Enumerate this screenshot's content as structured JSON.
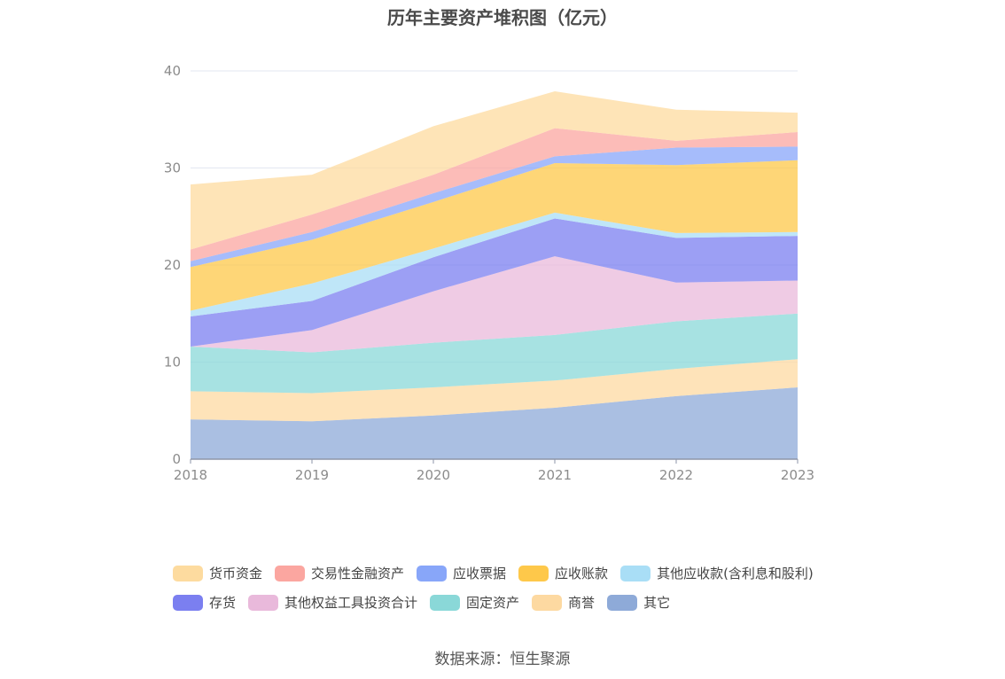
{
  "chart_data": {
    "type": "area",
    "stacked": true,
    "title": "历年主要资产堆积图（亿元）",
    "categories": [
      "2018",
      "2019",
      "2020",
      "2021",
      "2022",
      "2023"
    ],
    "ylim": [
      0,
      40
    ],
    "yticks": [
      0,
      10,
      20,
      30,
      40
    ],
    "grid": true,
    "legend_position": "bottom",
    "series": [
      {
        "name": "其它",
        "color": "#8eaad8",
        "values": [
          4.1,
          3.9,
          4.5,
          5.3,
          6.5,
          7.4
        ]
      },
      {
        "name": "商誉",
        "color": "#fdd9a1",
        "values": [
          2.9,
          2.9,
          2.9,
          2.8,
          2.8,
          2.9
        ]
      },
      {
        "name": "固定资产",
        "color": "#8ad8d8",
        "values": [
          4.6,
          4.2,
          4.6,
          4.7,
          4.9,
          4.7
        ]
      },
      {
        "name": "其他权益工具投资合计",
        "color": "#e9b9db",
        "values": [
          0.0,
          2.3,
          5.3,
          8.1,
          4.0,
          3.4
        ]
      },
      {
        "name": "存货",
        "color": "#7b7ff0",
        "values": [
          3.1,
          3.0,
          3.5,
          3.9,
          4.6,
          4.6
        ]
      },
      {
        "name": "其他应收款(含利息和股利)",
        "color": "#a9def6",
        "values": [
          0.6,
          1.8,
          0.9,
          0.6,
          0.5,
          0.4
        ]
      },
      {
        "name": "应收账款",
        "color": "#fec84a",
        "values": [
          4.5,
          4.5,
          4.8,
          5.1,
          7.0,
          7.4
        ]
      },
      {
        "name": "应收票据",
        "color": "#88a6f9",
        "values": [
          0.6,
          0.8,
          0.9,
          0.7,
          1.8,
          1.4
        ]
      },
      {
        "name": "交易性金融资产",
        "color": "#fba6a0",
        "values": [
          1.2,
          1.8,
          1.9,
          2.9,
          0.7,
          1.5
        ]
      },
      {
        "name": "货币资金",
        "color": "#fddb9f",
        "values": [
          6.7,
          4.1,
          5.0,
          3.8,
          3.2,
          2.0
        ]
      }
    ]
  },
  "legend": {
    "rows": [
      [
        {
          "name": "货币资金",
          "color": "#fddb9f"
        },
        {
          "name": "交易性金融资产",
          "color": "#fba6a0"
        },
        {
          "name": "应收票据",
          "color": "#88a6f9"
        },
        {
          "name": "应收账款",
          "color": "#fec84a"
        },
        {
          "name": "其他应收款(含利息和股利)",
          "color": "#a9def6"
        }
      ],
      [
        {
          "name": "存货",
          "color": "#7b7ff0"
        },
        {
          "name": "其他权益工具投资合计",
          "color": "#e9b9db"
        },
        {
          "name": "固定资产",
          "color": "#8ad8d8"
        },
        {
          "name": "商誉",
          "color": "#fdd9a1"
        },
        {
          "name": "其它",
          "color": "#8eaad8"
        }
      ]
    ]
  },
  "source": "数据来源：恒生聚源"
}
